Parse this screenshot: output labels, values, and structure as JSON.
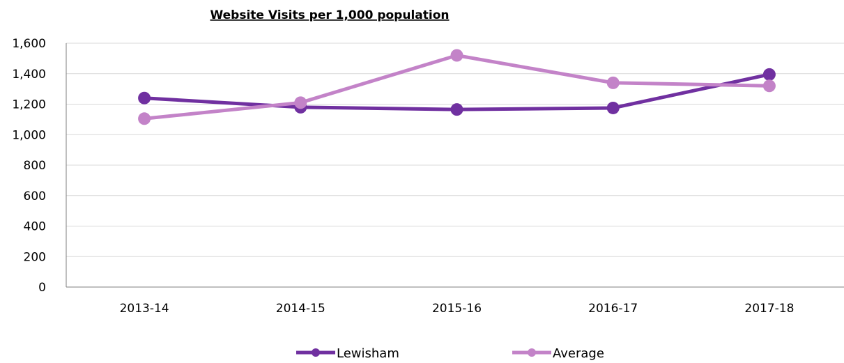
{
  "chart_data": {
    "type": "line",
    "title": "Website Visits per 1,000 population",
    "categories": [
      "2013-14",
      "2014-15",
      "2015-16",
      "2016-17",
      "2017-18"
    ],
    "ylim": [
      0,
      1600
    ],
    "yticks": [
      0,
      200,
      400,
      600,
      800,
      1000,
      1200,
      1400,
      1600
    ],
    "ytick_labels": [
      "0",
      "200",
      "400",
      "600",
      "800",
      "1,000",
      "1,200",
      "1,400",
      "1,600"
    ],
    "grid": true,
    "legend_position": "bottom",
    "series": [
      {
        "name": "Lewisham",
        "values": [
          1240,
          1180,
          1165,
          1175,
          1395
        ],
        "color": "#7030a0"
      },
      {
        "name": "Average",
        "values": [
          1105,
          1210,
          1520,
          1340,
          1320
        ],
        "color": "#c383c8"
      }
    ]
  }
}
